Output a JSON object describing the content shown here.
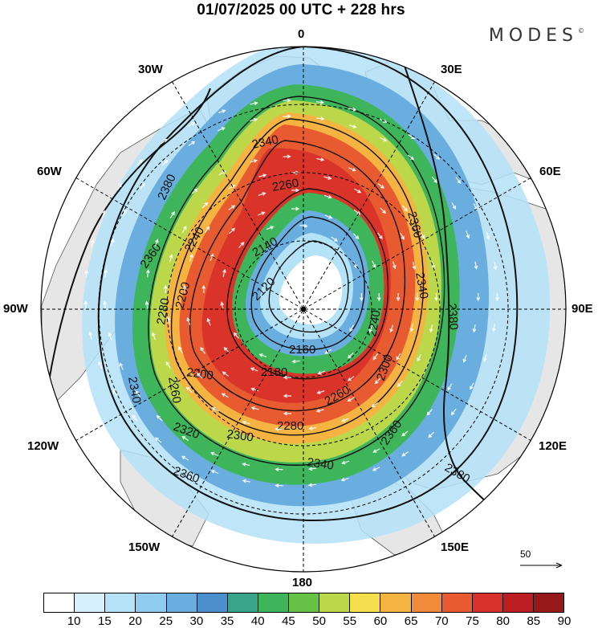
{
  "header": {
    "title": "01/07/2025  00 UTC  + 228 hrs",
    "brand": "MODES",
    "brand_mark": "©"
  },
  "meridian_labels": {
    "lon_0": "0",
    "lon_30e": "30E",
    "lon_60e": "60E",
    "lon_90e": "90E",
    "lon_120e": "120E",
    "lon_150e": "150E",
    "lon_180": "180",
    "lon_150w": "150W",
    "lon_120w": "120W",
    "lon_90w": "90W",
    "lon_60w": "60W",
    "lon_30w": "30W"
  },
  "contours": [
    {
      "label": "2120"
    },
    {
      "label": "2140"
    },
    {
      "label": "2160"
    },
    {
      "label": "2180"
    },
    {
      "label": "2200"
    },
    {
      "label": "2220"
    },
    {
      "label": "2240"
    },
    {
      "label": "2260"
    },
    {
      "label": "2280"
    },
    {
      "label": "2300"
    },
    {
      "label": "2320"
    },
    {
      "label": "2340"
    },
    {
      "label": "2360"
    },
    {
      "label": "2380"
    }
  ],
  "colorbar": {
    "ticks": [
      "10",
      "15",
      "20",
      "25",
      "30",
      "35",
      "40",
      "45",
      "50",
      "55",
      "60",
      "65",
      "70",
      "75",
      "80",
      "85",
      "90"
    ],
    "colors": [
      "#ffffff",
      "#d6f0fb",
      "#b4e2f7",
      "#8fcbee",
      "#6aaee0",
      "#4b90cc",
      "#3aa38c",
      "#3eb55a",
      "#67c247",
      "#bcd84a",
      "#f5df4e",
      "#f5b342",
      "#f18a3a",
      "#e85a30",
      "#d8302a",
      "#bd1e22",
      "#961a1a"
    ]
  },
  "wind_scale": {
    "label": "50"
  },
  "colors": {
    "land": "#e8e8e8",
    "contour": "#111111",
    "arrow": "#ffffff"
  }
}
